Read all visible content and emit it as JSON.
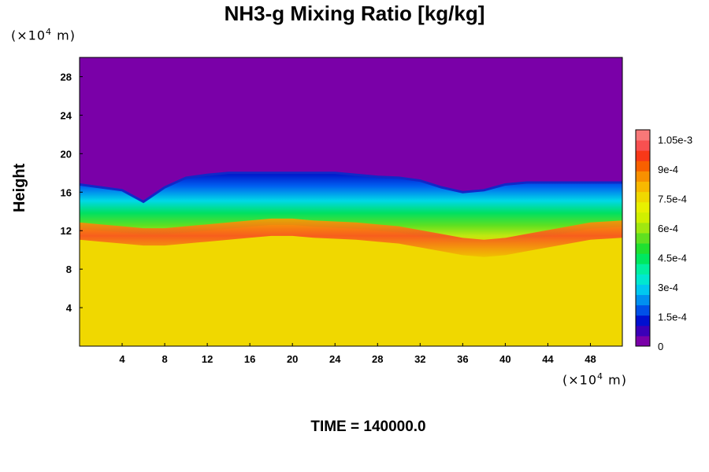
{
  "chart_data": {
    "type": "heatmap",
    "title": "NH3-g Mixing Ratio [kg/kg]",
    "ylabel": "Height",
    "y_unit_prefix": "(×10",
    "y_unit_exp": "4",
    "y_unit_suffix": " m)",
    "x_unit_prefix": "(×10",
    "x_unit_exp": "4",
    "x_unit_suffix": " m)",
    "xlim": [
      0,
      51
    ],
    "ylim": [
      0,
      30
    ],
    "x_ticks": [
      "4",
      "8",
      "12",
      "16",
      "20",
      "24",
      "28",
      "32",
      "36",
      "40",
      "44",
      "48"
    ],
    "y_ticks": [
      "4",
      "8",
      "12",
      "16",
      "20",
      "24",
      "28"
    ],
    "colorbar": {
      "min": 0,
      "max": 0.0011,
      "tick_labels": [
        "0",
        "1.5e-4",
        "3e-4",
        "4.5e-4",
        "6e-4",
        "7.5e-4",
        "9e-4",
        "1.05e-3"
      ],
      "colors": [
        "#7a00a8",
        "#3a00b8",
        "#0010d0",
        "#0050e8",
        "#0090f0",
        "#00c8f0",
        "#00e8d0",
        "#00f0a0",
        "#00e860",
        "#20e030",
        "#60e020",
        "#a0e810",
        "#d0f000",
        "#e8f000",
        "#f0d800",
        "#f8b800",
        "#f89000",
        "#f86000",
        "#f83818",
        "#f85050",
        "#f87878"
      ]
    },
    "layers": {
      "top_value": 0,
      "boundary_height_profile": {
        "x": [
          0,
          2,
          4,
          6,
          8,
          10,
          12,
          14,
          16,
          18,
          20,
          22,
          24,
          26,
          28,
          30,
          32,
          34,
          36,
          38,
          40,
          42,
          44,
          46,
          48,
          51
        ],
        "upper_edge_km": [
          16.8,
          16.5,
          16.2,
          15.0,
          16.5,
          17.5,
          17.8,
          18.0,
          18.0,
          18.0,
          18.0,
          18.0,
          18.0,
          17.8,
          17.6,
          17.5,
          17.2,
          16.5,
          16.0,
          16.2,
          16.8,
          17.0,
          17.0,
          17.0,
          17.0,
          17.0
        ],
        "peak_layer_km": [
          12.2,
          12.0,
          11.8,
          11.6,
          11.6,
          11.8,
          12.0,
          12.2,
          12.4,
          12.6,
          12.6,
          12.4,
          12.3,
          12.2,
          12.0,
          11.8,
          11.4,
          11.0,
          10.6,
          10.4,
          10.6,
          11.0,
          11.4,
          11.8,
          12.2,
          12.4
        ]
      },
      "lower_value": 0.00078
    }
  },
  "footer": {
    "time_text": "TIME = 140000.0"
  }
}
